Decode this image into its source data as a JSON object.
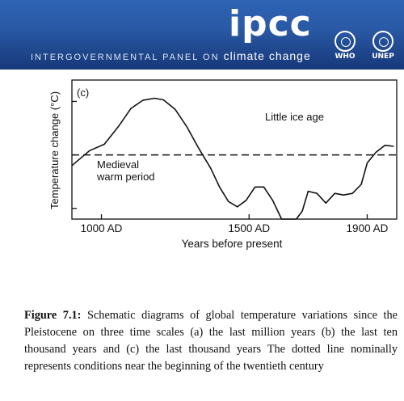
{
  "header": {
    "logo_text": "ipcc",
    "subtitle_prefix": "INTERGOVERNMENTAL PANEL ON ",
    "subtitle_emphasis": "climate change",
    "orgs": [
      {
        "label": "WHO",
        "icon": "who-emblem-icon"
      },
      {
        "label": "UNEP",
        "icon": "unep-emblem-icon"
      }
    ]
  },
  "chart_data": {
    "type": "line",
    "panel_label": "(c)",
    "ylabel": "Temperature change (°C)",
    "xlabel": "Years before present",
    "x_ticks": [
      {
        "value": 1000,
        "label": "1000 AD"
      },
      {
        "value": 1500,
        "label": "1500 AD"
      },
      {
        "value": 1900,
        "label": "1900 AD"
      }
    ],
    "xlim": [
      900,
      2000
    ],
    "ylim": [
      -1.2,
      1.4
    ],
    "y_ticks": [
      -1,
      0,
      1
    ],
    "reference_line": 0,
    "series": [
      {
        "x": [
          900,
          960,
          1010,
          1060,
          1100,
          1140,
          1180,
          1210,
          1250,
          1290,
          1330,
          1370,
          1400,
          1430,
          1460,
          1490,
          1520,
          1550,
          1580,
          1610,
          1640,
          1660,
          1680,
          1700,
          1730,
          1760,
          1790,
          1820,
          1850,
          1880,
          1900,
          1930,
          1960,
          1990
        ],
        "y": [
          -0.2,
          0.08,
          0.2,
          0.55,
          0.87,
          1.02,
          1.06,
          1.03,
          0.85,
          0.52,
          0.12,
          -0.25,
          -0.6,
          -0.87,
          -0.97,
          -0.85,
          -0.6,
          -0.6,
          -0.85,
          -1.2,
          -1.45,
          -1.48,
          -1.05,
          -0.68,
          -0.72,
          -0.9,
          -0.72,
          -0.75,
          -0.72,
          -0.55,
          -0.15,
          0.05,
          0.18,
          0.16
        ]
      }
    ],
    "annotations": [
      {
        "text": "Little ice age"
      },
      {
        "text": "Medieval"
      },
      {
        "text": "warm period"
      }
    ]
  },
  "caption": {
    "label": "Figure 7.1:",
    "text": "Schematic diagrams of global temperature variations since the Pleistocene on three time scales (a) the last million years (b) the last ten thousand years and (c) the last thousand years The dotted line nominally represents conditions near the beginning of the twentieth century"
  }
}
